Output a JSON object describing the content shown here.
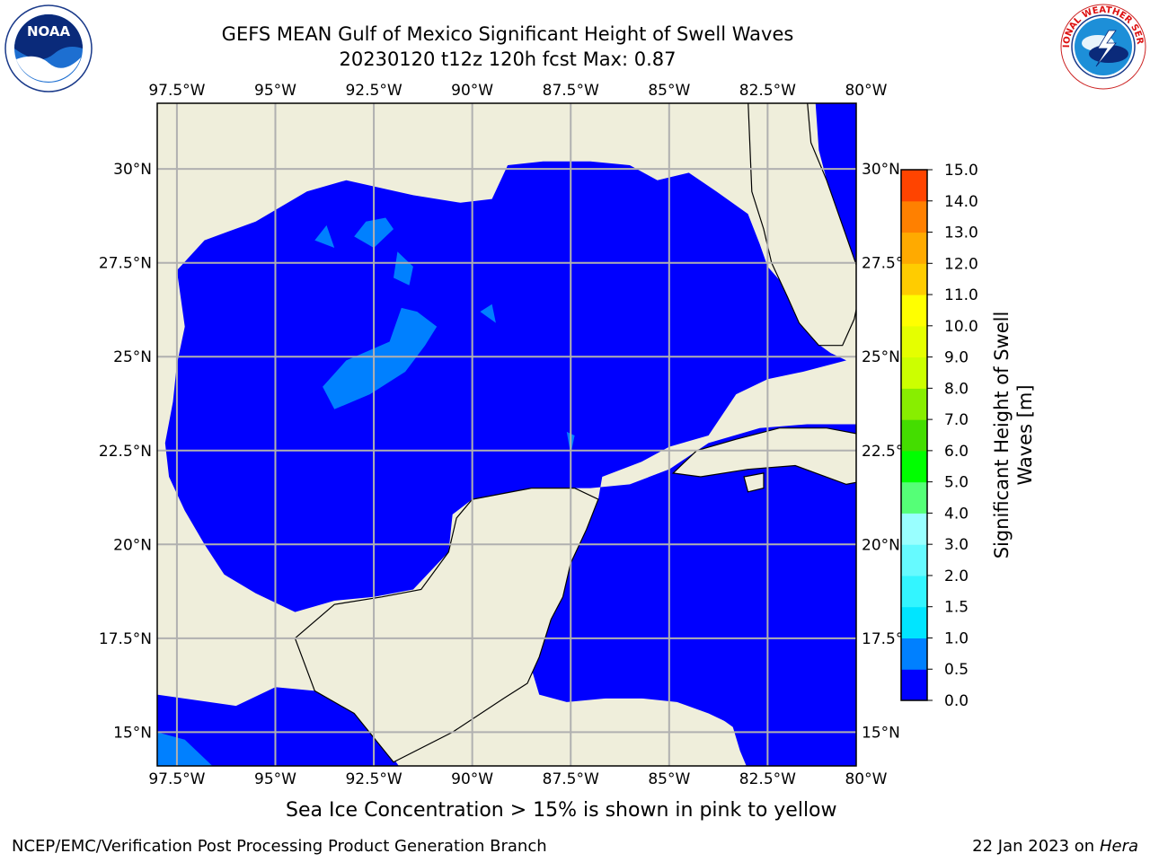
{
  "header": {
    "title": "GEFS MEAN Gulf of Mexico Significant Height of Swell Waves",
    "subtitle": "20230120 t12z 120h fcst   Max: 0.87"
  },
  "logos": {
    "left": {
      "name": "noaa-logo",
      "text": "NOAA"
    },
    "right": {
      "name": "nws-logo",
      "text": "NATIONAL WEATHER SERVICE"
    }
  },
  "colors": {
    "land": "#efeedb",
    "ocean_level0": "#0000ff",
    "ocean_level1": "#0080ff",
    "gridline": "#b0b0b0",
    "coast": "#000000"
  },
  "chart_data": {
    "type": "heatmap",
    "title": "GEFS MEAN Gulf of Mexico Significant Height of Swell Waves",
    "max_value": 0.87,
    "xlim": [
      -98.0,
      -80.25
    ],
    "ylim": [
      14.1,
      31.75
    ],
    "x_ticks": [
      {
        "value": -97.5,
        "label": "97.5°W"
      },
      {
        "value": -95,
        "label": "95°W"
      },
      {
        "value": -92.5,
        "label": "92.5°W"
      },
      {
        "value": -90,
        "label": "90°W"
      },
      {
        "value": -87.5,
        "label": "87.5°W"
      },
      {
        "value": -85,
        "label": "85°W"
      },
      {
        "value": -82.5,
        "label": "82.5°W"
      },
      {
        "value": -80,
        "label": "80°W"
      }
    ],
    "y_ticks": [
      {
        "value": 30,
        "label": "30°N"
      },
      {
        "value": 27.5,
        "label": "27.5°N"
      },
      {
        "value": 25,
        "label": "25°N"
      },
      {
        "value": 22.5,
        "label": "22.5°N"
      },
      {
        "value": 20,
        "label": "20°N"
      },
      {
        "value": 17.5,
        "label": "17.5°N"
      },
      {
        "value": 15,
        "label": "15°N"
      }
    ],
    "colorbar": {
      "label": "Significant Height of Swell Waves [m]",
      "label_line1": "Significant Height of Swell",
      "label_line2": "Waves [m]",
      "min": 0,
      "max": 15,
      "tick_labels": [
        "0.0",
        "0.5",
        "1.0",
        "1.5",
        "2.0",
        "3.0",
        "4.0",
        "5.0",
        "6.0",
        "7.0",
        "8.0",
        "9.0",
        "10.0",
        "11.0",
        "12.0",
        "13.0",
        "14.0",
        "15.0"
      ],
      "colors": [
        "#0000ff",
        "#0080ff",
        "#00e5ff",
        "#33f5ff",
        "#66faff",
        "#99ffff",
        "#55ff77",
        "#00ff00",
        "#44dd00",
        "#88ee00",
        "#ccff00",
        "#e5ff00",
        "#ffff00",
        "#ffcc00",
        "#ffaa00",
        "#ff8000",
        "#ff4400",
        "#ff0000"
      ]
    },
    "note": "Sea Ice Concentration > 15% is shown in pink to yellow"
  },
  "footer": {
    "left": "NCEP/EMC/Verification Post Processing Product Generation Branch",
    "right_date": "22 Jan 2023 on ",
    "right_host": "Hera"
  }
}
